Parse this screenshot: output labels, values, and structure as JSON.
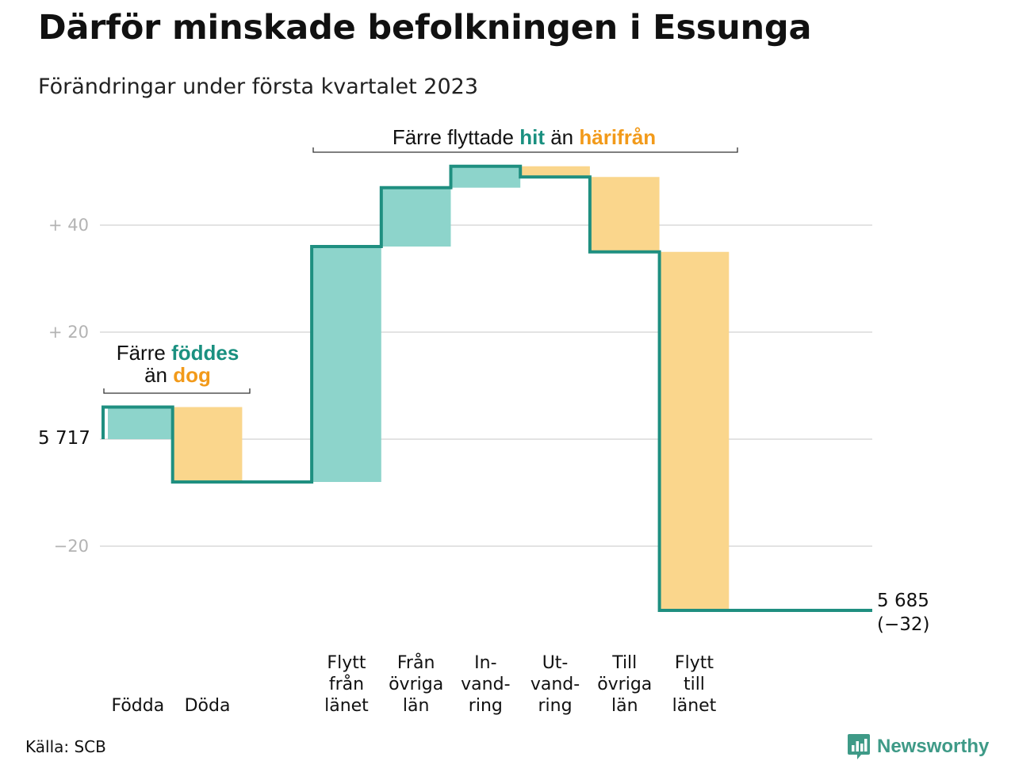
{
  "title": "Därför minskade befolkningen i Essunga",
  "subtitle": "Förändringar under första kvartalet 2023",
  "source": "Källa: SCB",
  "brand": "Newsworthy",
  "colors": {
    "line": "#1f8f80",
    "gain": "#8dd4cb",
    "loss": "#fad68c",
    "gain_text": "#1a9080",
    "loss_text": "#f29a1a",
    "grid": "#e3e3e3",
    "brand": "#3e9a87"
  },
  "annotations": {
    "births": {
      "line1": "Färre",
      "word_gain": "föddes",
      "line2": "än",
      "word_loss": "dog"
    },
    "moves": {
      "prefix": "Färre flyttade",
      "word_gain": "hit",
      "middle": "än",
      "word_loss": "härifrån"
    }
  },
  "chart_data": {
    "type": "waterfall",
    "title": "Därför minskade befolkningen i Essunga",
    "subtitle": "Förändringar under första kvartalet 2023",
    "start_population": 5717,
    "start_label": "5 717",
    "end_population": 5685,
    "end_label": "5 685",
    "end_change_label": "(−32)",
    "total_change": -32,
    "yticks": [
      {
        "value": 40,
        "label": "+ 40"
      },
      {
        "value": 20,
        "label": "+ 20"
      },
      {
        "value": 0,
        "label": ""
      },
      {
        "value": -20,
        "label": "−20"
      }
    ],
    "ylim": [
      -35,
      55
    ],
    "grid": true,
    "categories": [
      {
        "label": [
          "Födda"
        ],
        "value": 6,
        "kind": "gain"
      },
      {
        "label": [
          "Döda"
        ],
        "value": -14,
        "kind": "loss"
      },
      {
        "label": [
          ""
        ],
        "value": 0,
        "kind": "gap"
      },
      {
        "label": [
          "Flytt",
          "från",
          "länet"
        ],
        "value": 44,
        "kind": "gain"
      },
      {
        "label": [
          "Från",
          "övriga",
          "län"
        ],
        "value": 11,
        "kind": "gain"
      },
      {
        "label": [
          "In-",
          "vand-",
          "ring"
        ],
        "value": 4,
        "kind": "gain"
      },
      {
        "label": [
          "Ut-",
          "vand-",
          "ring"
        ],
        "value": -2,
        "kind": "loss"
      },
      {
        "label": [
          "Till",
          "övriga",
          "län"
        ],
        "value": -14,
        "kind": "loss"
      },
      {
        "label": [
          "Flytt",
          "till",
          "länet"
        ],
        "value": -67,
        "kind": "loss"
      }
    ]
  }
}
